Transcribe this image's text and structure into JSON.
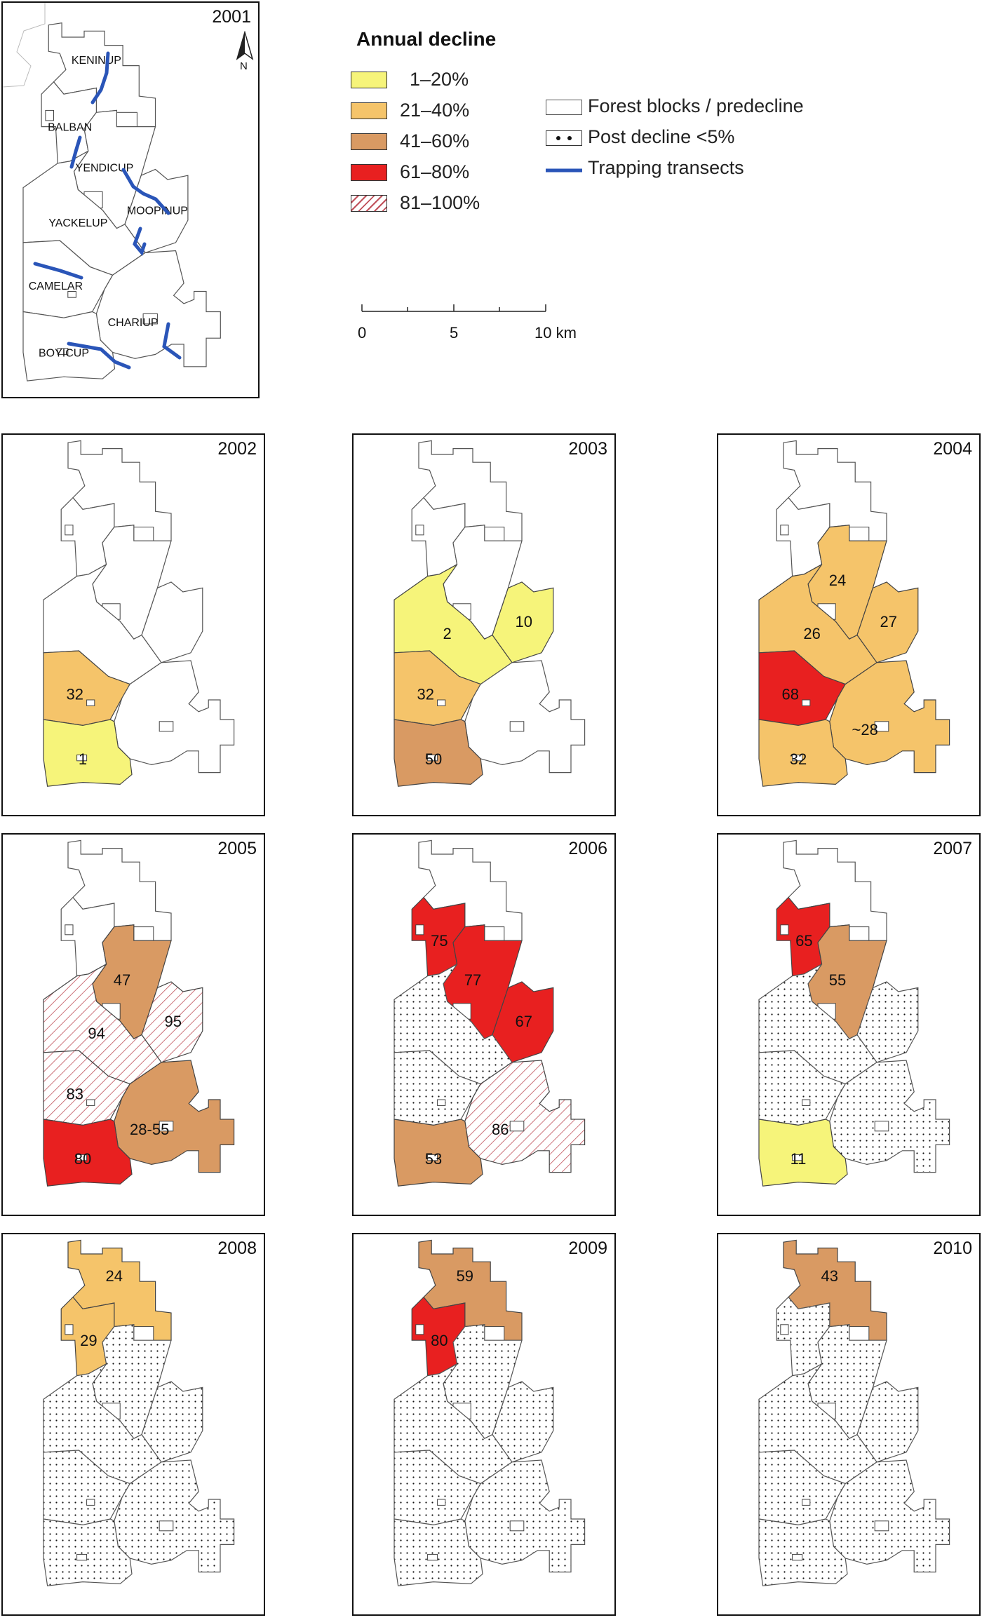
{
  "colors": {
    "c1_20": "#f6f47a",
    "c21_40": "#f5c46a",
    "c41_60": "#d99a63",
    "c61_80": "#e82020",
    "c81_100_hatch": "#c0505a",
    "transect": "#2a55b8",
    "outline": "#555555"
  },
  "legend": {
    "title": "Annual decline",
    "classes": [
      "1–20%",
      "21–40%",
      "41–60%",
      "61–80%",
      "81–100%"
    ],
    "forest_blocks": "Forest blocks / predecline",
    "post_decline": "Post decline <5%",
    "transects": "Trapping transects"
  },
  "scale_bar": {
    "ticks": [
      "0",
      "5",
      "10 km"
    ]
  },
  "north_arrow": "N",
  "blocks": [
    "KENINUP",
    "BALBAN",
    "YENDICUP",
    "MOOPINUP",
    "YACKELUP",
    "CAMELAR",
    "CHARIUP",
    "BOYICUP"
  ],
  "panels": [
    {
      "year": "2001"
    },
    {
      "year": "2002",
      "values": {
        "CAMELAR": "32",
        "BOYICUP": "1"
      }
    },
    {
      "year": "2003",
      "values": {
        "MOOPINUP": "10",
        "YACKELUP": "2",
        "CAMELAR": "32",
        "BOYICUP": "50"
      }
    },
    {
      "year": "2004",
      "values": {
        "YENDICUP": "24",
        "MOOPINUP": "27",
        "YACKELUP": "26",
        "CAMELAR": "68",
        "CHARIUP": "~28",
        "BOYICUP": "32"
      }
    },
    {
      "year": "2005",
      "values": {
        "YENDICUP": "47",
        "MOOPINUP": "95",
        "YACKELUP": "94",
        "CAMELAR": "83",
        "CHARIUP": "28-55",
        "BOYICUP": "80"
      }
    },
    {
      "year": "2006",
      "values": {
        "BALBAN": "75",
        "YENDICUP": "77",
        "MOOPINUP": "67",
        "BOYICUP": "53",
        "CHARIUP": "86"
      }
    },
    {
      "year": "2007",
      "values": {
        "BALBAN": "65",
        "YENDICUP": "55",
        "BOYICUP": "11"
      }
    },
    {
      "year": "2008",
      "values": {
        "KENINUP": "24",
        "BALBAN": "29"
      }
    },
    {
      "year": "2009",
      "values": {
        "KENINUP": "59",
        "BALBAN": "80"
      }
    },
    {
      "year": "2010",
      "values": {
        "KENINUP": "43"
      }
    }
  ]
}
